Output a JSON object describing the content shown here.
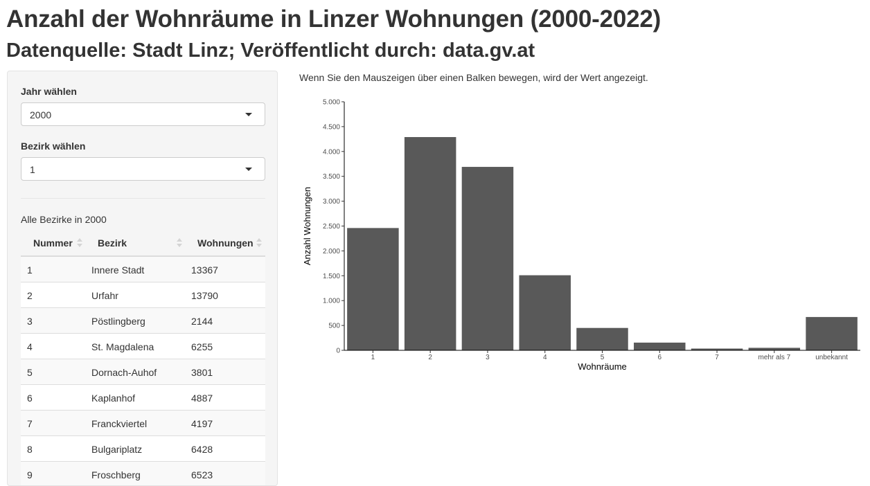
{
  "header": {
    "title": "Anzahl der Wohnräume in Linzer Wohnungen (2000-2022)",
    "subtitle": "Datenquelle: Stadt Linz; Veröffentlicht durch: data.gv.at"
  },
  "sidebar": {
    "year_label": "Jahr wählen",
    "year_value": "2000",
    "district_label": "Bezirk wählen",
    "district_value": "1",
    "table_caption": "Alle Bezirke in 2000",
    "columns": [
      "Nummer",
      "Bezirk",
      "Wohnungen"
    ],
    "rows": [
      {
        "nummer": "1",
        "bezirk": "Innere Stadt",
        "wohnungen": "13367"
      },
      {
        "nummer": "2",
        "bezirk": "Urfahr",
        "wohnungen": "13790"
      },
      {
        "nummer": "3",
        "bezirk": "Pöstlingberg",
        "wohnungen": "2144"
      },
      {
        "nummer": "4",
        "bezirk": "St. Magdalena",
        "wohnungen": "6255"
      },
      {
        "nummer": "5",
        "bezirk": "Dornach-Auhof",
        "wohnungen": "3801"
      },
      {
        "nummer": "6",
        "bezirk": "Kaplanhof",
        "wohnungen": "4887"
      },
      {
        "nummer": "7",
        "bezirk": "Franckviertel",
        "wohnungen": "4197"
      },
      {
        "nummer": "8",
        "bezirk": "Bulgariplatz",
        "wohnungen": "6428"
      },
      {
        "nummer": "9",
        "bezirk": "Froschberg",
        "wohnungen": "6523"
      }
    ]
  },
  "main": {
    "hint": "Wenn Sie den Mauszeigen über einen Balken bewegen, wird der Wert angezeigt."
  },
  "chart_data": {
    "type": "bar",
    "categories": [
      "1",
      "2",
      "3",
      "4",
      "5",
      "6",
      "7",
      "mehr als 7",
      "unbekannt"
    ],
    "values": [
      2460,
      4290,
      3690,
      1510,
      450,
      155,
      35,
      50,
      670
    ],
    "xlabel": "Wohnräume",
    "ylabel": "Anzahl Wohnungen",
    "ylim": [
      0,
      5000
    ],
    "yticks": [
      0,
      500,
      1000,
      1500,
      2000,
      2500,
      3000,
      3500,
      4000,
      4500,
      5000
    ],
    "ytick_labels": [
      "0",
      "500",
      "1.000",
      "1.500",
      "2.000",
      "2.500",
      "3.000",
      "3.500",
      "4.000",
      "4.500",
      "5.000"
    ],
    "grid": false,
    "bar_color": "#595959"
  }
}
